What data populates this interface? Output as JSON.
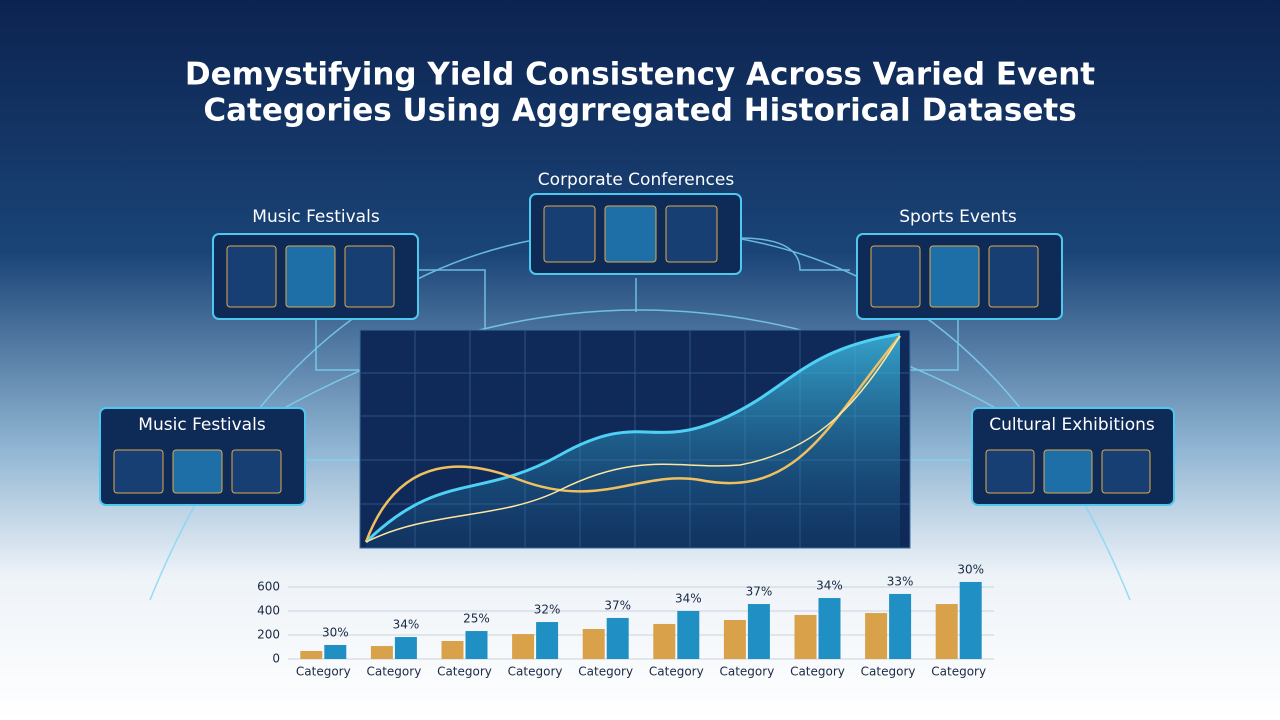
{
  "title_lines": [
    "Demystifying Yield Consistency Across Varied Event",
    "Categories Using Aggrregated Historical Datasets"
  ],
  "panels": [
    {
      "label": "Music Festivals"
    },
    {
      "label": "Corporate Conferences"
    },
    {
      "label": "Sports Events"
    },
    {
      "label": "Music Festivals"
    },
    {
      "label": "Cultural Exhibitions"
    }
  ],
  "chart_data": {
    "type": "bar",
    "categories": [
      "Category",
      "Category",
      "Category",
      "Category",
      "Category",
      "Category",
      "Category",
      "Category",
      "Category",
      "Category"
    ],
    "series": [
      {
        "color": "#d9a24a",
        "values": [
          67,
          108,
          150,
          208,
          250,
          292,
          325,
          367,
          383,
          458
        ]
      },
      {
        "color": "#1f8fc4",
        "values": [
          117,
          183,
          233,
          308,
          342,
          400,
          458,
          508,
          542,
          642
        ]
      }
    ],
    "bar_labels": [
      "30%",
      "34%",
      "25%",
      "32%",
      "37%",
      "34%",
      "37%",
      "34%",
      "33%",
      "30%"
    ],
    "ylim": [
      0,
      650
    ],
    "yticks": [
      0,
      200,
      400,
      600
    ]
  }
}
